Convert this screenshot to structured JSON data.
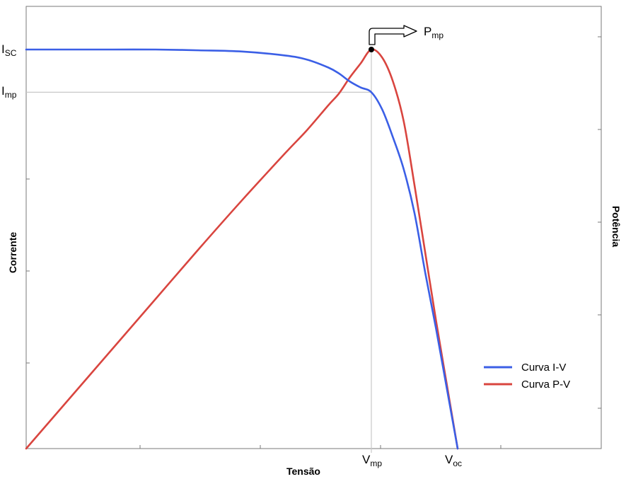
{
  "chart_data": {
    "type": "line",
    "xlabel": "Tensão",
    "ylabel_left": "Corrente",
    "ylabel_right": "Potência",
    "x_ticks": [
      {
        "main": "V",
        "sub": "mp",
        "x": 0.8
      },
      {
        "main": "V",
        "sub": "oc",
        "x": 1.0
      }
    ],
    "y_ticks": [
      {
        "main": "I",
        "sub": "SC",
        "y": 1.0
      },
      {
        "main": "I",
        "sub": "mp",
        "y": 0.893
      }
    ],
    "annotation": {
      "main": "P",
      "sub": "mp"
    },
    "xlim": [
      0,
      1
    ],
    "ylim": [
      0,
      1
    ],
    "grid": false,
    "legend_position": "bottom-right",
    "series": [
      {
        "name": "Curva I-V",
        "color": "#3b5fe6",
        "axis": "left",
        "x": [
          0,
          0.1,
          0.2,
          0.3,
          0.4,
          0.5,
          0.6,
          0.65,
          0.7,
          0.725,
          0.75,
          0.775,
          0.8,
          0.825,
          0.85,
          0.875,
          0.9,
          0.925,
          0.95,
          0.975,
          1.0
        ],
        "y": [
          1.0,
          1.0,
          1.0,
          1.0,
          0.998,
          0.995,
          0.985,
          0.975,
          0.955,
          0.94,
          0.92,
          0.905,
          0.893,
          0.85,
          0.78,
          0.7,
          0.59,
          0.44,
          0.3,
          0.15,
          0.0
        ]
      },
      {
        "name": "Curva P-V",
        "color": "#d9453f",
        "axis": "right",
        "x": [
          0,
          0.1,
          0.2,
          0.3,
          0.4,
          0.5,
          0.6,
          0.65,
          0.7,
          0.725,
          0.75,
          0.775,
          0.8,
          0.825,
          0.85,
          0.875,
          0.9,
          0.925,
          0.95,
          0.975,
          1.0
        ],
        "y": [
          0.0,
          0.125,
          0.25,
          0.375,
          0.5,
          0.622,
          0.74,
          0.797,
          0.86,
          0.89,
          0.93,
          0.965,
          1.0,
          0.98,
          0.92,
          0.82,
          0.66,
          0.49,
          0.32,
          0.16,
          0.0
        ]
      }
    ]
  }
}
